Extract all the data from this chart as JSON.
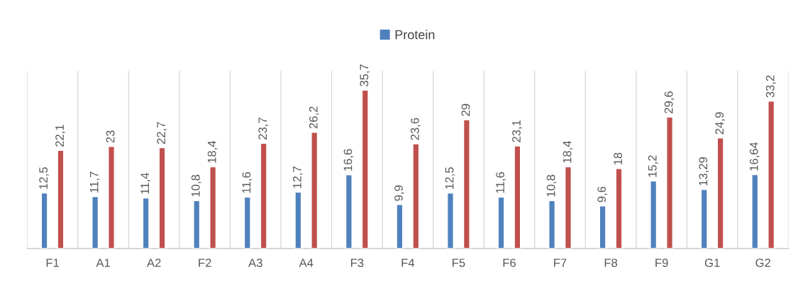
{
  "chart_data": {
    "type": "bar",
    "categories": [
      "F1",
      "A1",
      "A2",
      "F2",
      "A3",
      "A4",
      "F3",
      "F4",
      "F5",
      "F6",
      "F7",
      "F8",
      "F9",
      "G1",
      "G2"
    ],
    "series": [
      {
        "name": "Protein",
        "color": "#4f81bd",
        "values": [
          12.5,
          11.7,
          11.4,
          10.8,
          11.6,
          12.7,
          16.6,
          9.9,
          12.5,
          11.6,
          10.8,
          9.6,
          15.2,
          13.29,
          16.64
        ],
        "value_labels": [
          "12,5",
          "11,7",
          "11,4",
          "10,8",
          "11,6",
          "12,7",
          "16,6",
          "9,9",
          "12,5",
          "11,6",
          "10,8",
          "9,6",
          "15,2",
          "13,29",
          "16,64"
        ]
      },
      {
        "color": "#c0504d",
        "values": [
          22.1,
          23,
          22.7,
          18.4,
          23.7,
          26.2,
          35.7,
          23.6,
          29,
          23.1,
          18.4,
          18,
          29.6,
          24.9,
          33.2
        ],
        "value_labels": [
          "22,1",
          "23",
          "22,7",
          "18,4",
          "23,7",
          "26,2",
          "35,7",
          "23,6",
          "29",
          "23,1",
          "18,4",
          "18",
          "29,6",
          "24,9",
          "33,2"
        ]
      }
    ],
    "ylim": [
      0,
      40
    ],
    "grid": "x",
    "legend": "top",
    "tick_labels": "x"
  }
}
